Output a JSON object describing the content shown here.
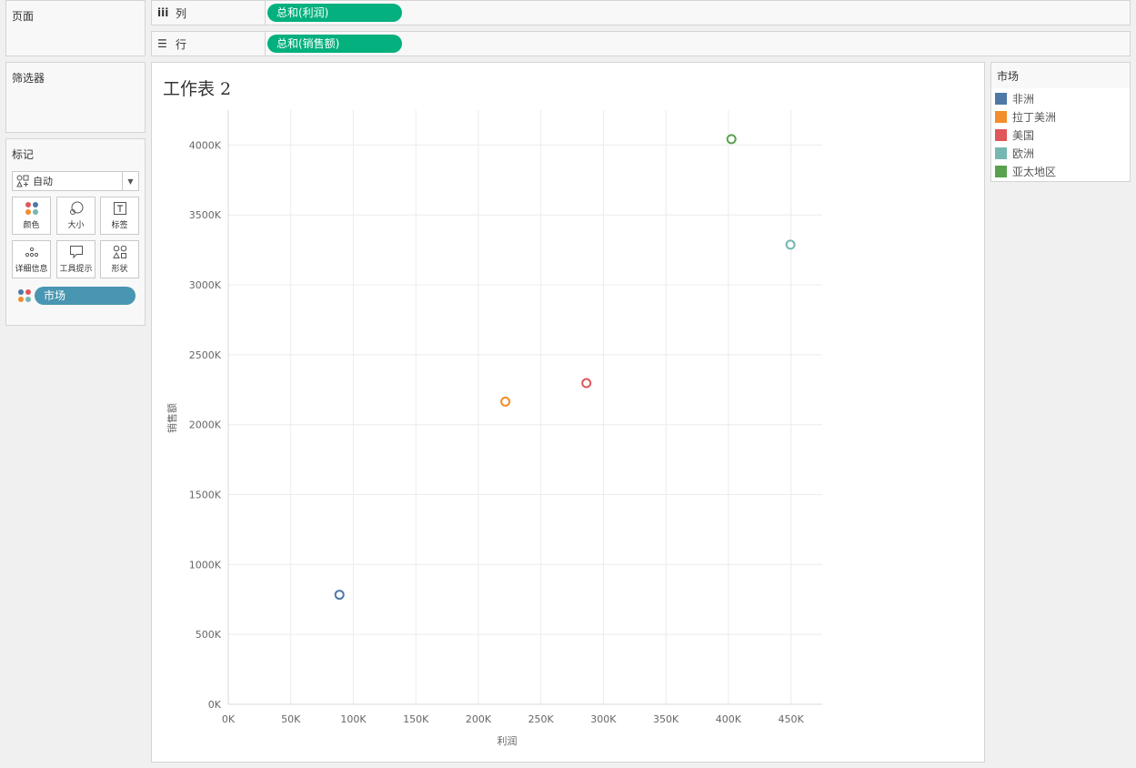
{
  "panels": {
    "pages": "页面",
    "filters": "筛选器",
    "marks": "标记"
  },
  "shelves": {
    "columns": {
      "label": "列",
      "icon": "columns-icon",
      "pill": "总和(利润)"
    },
    "rows": {
      "label": "行",
      "icon": "rows-icon",
      "pill": "总和(销售额)"
    }
  },
  "marks_card": {
    "mark_type": "自动",
    "buttons": [
      {
        "label": "颜色",
        "icon": "color-icon"
      },
      {
        "label": "大小",
        "icon": "size-icon"
      },
      {
        "label": "标签",
        "icon": "label-icon"
      },
      {
        "label": "详细信息",
        "icon": "detail-icon"
      },
      {
        "label": "工具提示",
        "icon": "tooltip-icon"
      },
      {
        "label": "形状",
        "icon": "shape-icon"
      }
    ],
    "field": "市场"
  },
  "worksheet": {
    "title": "工作表 2"
  },
  "legend": {
    "title": "市场",
    "items": [
      {
        "label": "非洲",
        "color": "#4e79a7"
      },
      {
        "label": "拉丁美洲",
        "color": "#f28e2b"
      },
      {
        "label": "美国",
        "color": "#e15759"
      },
      {
        "label": "欧洲",
        "color": "#76b7b2"
      },
      {
        "label": "亚太地区",
        "color": "#59a14f"
      }
    ]
  },
  "chart_data": {
    "type": "scatter",
    "xlabel": "利润",
    "ylabel": "销售额",
    "xlim": [
      0,
      475000
    ],
    "ylim": [
      0,
      4250000
    ],
    "x_ticks": [
      "0K",
      "50K",
      "100K",
      "150K",
      "200K",
      "250K",
      "300K",
      "350K",
      "400K",
      "450K"
    ],
    "y_ticks": [
      "0K",
      "500K",
      "1000K",
      "1500K",
      "2000K",
      "2500K",
      "3000K",
      "3500K",
      "4000K"
    ],
    "grid": true,
    "series": [
      {
        "name": "非洲",
        "x": 88900,
        "y": 783800,
        "color": "#4e79a7"
      },
      {
        "name": "拉丁美洲",
        "x": 221600,
        "y": 2164600,
        "color": "#f28e2b"
      },
      {
        "name": "美国",
        "x": 286400,
        "y": 2297200,
        "color": "#e15759"
      },
      {
        "name": "欧洲",
        "x": 449600,
        "y": 3287300,
        "color": "#76b7b2"
      },
      {
        "name": "亚太地区",
        "x": 402400,
        "y": 4042700,
        "color": "#59a14f"
      }
    ]
  }
}
